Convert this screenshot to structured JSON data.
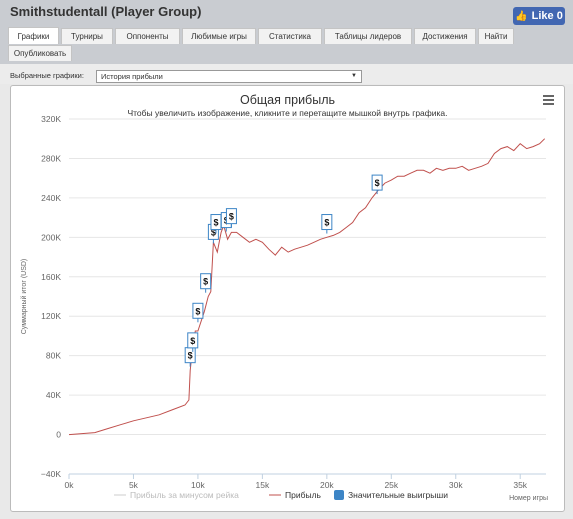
{
  "header": {
    "title": "Smithstudentall (Player Group)",
    "like_label": "Like 0"
  },
  "tabs": [
    {
      "label": "Графики",
      "active": true
    },
    {
      "label": "Турниры"
    },
    {
      "label": "Оппоненты"
    },
    {
      "label": "Любимые игры"
    },
    {
      "label": "Статистика"
    },
    {
      "label": "Таблицы лидеров"
    },
    {
      "label": "Достижения"
    },
    {
      "label": "Найти"
    },
    {
      "label": "Опубликовать"
    }
  ],
  "selector": {
    "label": "Выбранные графики:",
    "value": "История прибыли"
  },
  "chart_data": {
    "type": "line",
    "title": "Общая прибыль",
    "subtitle": "Чтобы увеличить изображение, кликните и перетащите мышкой внутрь графика.",
    "xlabel": "Номер игры",
    "ylabel": "Суммарный итог (USD)",
    "x_ticks": [
      "0k",
      "5k",
      "10k",
      "15k",
      "20k",
      "25k",
      "30k",
      "35k"
    ],
    "y_ticks": [
      "320K",
      "280K",
      "240K",
      "200K",
      "160K",
      "120K",
      "80K",
      "40K",
      "0",
      "−40K"
    ],
    "xlim": [
      0,
      37000
    ],
    "ylim": [
      -40000,
      320000
    ],
    "colors": {
      "profit": "#c0504d",
      "rake": "#cccccc",
      "wins": "#3d85c6"
    },
    "series": [
      {
        "name": "Прибыль",
        "x": [
          0,
          1000,
          2000,
          3000,
          4000,
          5000,
          6000,
          7000,
          8000,
          9000,
          9300,
          9400,
          9600,
          9800,
          10000,
          10500,
          10800,
          11000,
          11200,
          11500,
          11800,
          12000,
          12300,
          12600,
          13000,
          13500,
          14000,
          14500,
          15000,
          15500,
          16000,
          16500,
          17000,
          17500,
          18000,
          18500,
          19000,
          19500,
          20000,
          20500,
          21000,
          21500,
          22000,
          22500,
          23000,
          23500,
          24000,
          24500,
          25000,
          25500,
          26000,
          26500,
          27000,
          27500,
          28000,
          28500,
          29000,
          29500,
          30000,
          30500,
          31000,
          31500,
          32000,
          32500,
          33000,
          33500,
          34000,
          34500,
          35000,
          35500,
          36000,
          36500,
          36900
        ],
        "values": [
          0,
          1000,
          2000,
          6000,
          10000,
          14000,
          17000,
          20000,
          25000,
          30000,
          35000,
          65000,
          90000,
          105000,
          105000,
          125000,
          140000,
          145000,
          195000,
          185000,
          205000,
          212000,
          198000,
          205000,
          205000,
          200000,
          195000,
          198000,
          195000,
          188000,
          182000,
          190000,
          185000,
          188000,
          190000,
          192000,
          195000,
          198000,
          200000,
          202000,
          205000,
          210000,
          215000,
          225000,
          230000,
          240000,
          248000,
          255000,
          258000,
          262000,
          262000,
          265000,
          268000,
          268000,
          265000,
          270000,
          268000,
          270000,
          270000,
          272000,
          268000,
          270000,
          272000,
          275000,
          285000,
          290000,
          292000,
          288000,
          295000,
          290000,
          292000,
          295000,
          300000
        ]
      },
      {
        "name": "Прибыль за минусом рейка",
        "x": [],
        "values": []
      }
    ],
    "significant_wins": [
      {
        "x": 9400,
        "y": 80000
      },
      {
        "x": 9600,
        "y": 95000
      },
      {
        "x": 10000,
        "y": 125000
      },
      {
        "x": 10600,
        "y": 155000
      },
      {
        "x": 11200,
        "y": 205000
      },
      {
        "x": 11400,
        "y": 215000
      },
      {
        "x": 12200,
        "y": 217000
      },
      {
        "x": 12600,
        "y": 221000
      },
      {
        "x": 20000,
        "y": 215000
      },
      {
        "x": 23900,
        "y": 255000
      }
    ],
    "win_marker_label": "$",
    "legend": {
      "placement": "bottom",
      "items": [
        "Прибыль за минусом рейка",
        "Прибыль",
        "Значительные выигрыши"
      ]
    }
  }
}
